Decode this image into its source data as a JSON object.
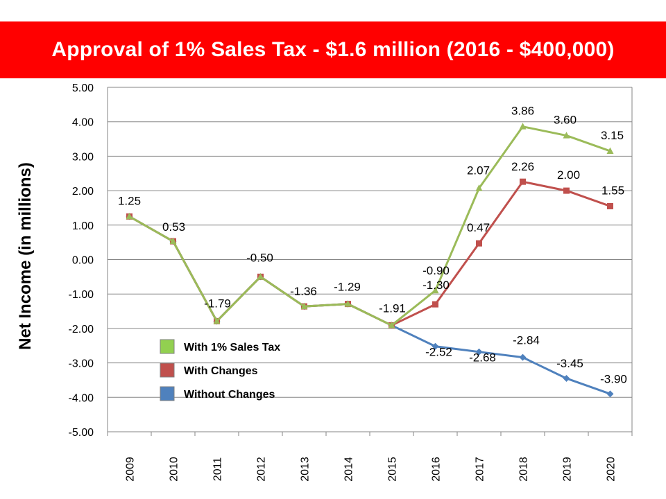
{
  "chart_data": {
    "type": "line",
    "title": "Approval of 1% Sales Tax - $1.6 million (2016 - $400,000)",
    "xlabel": "",
    "ylabel": "Net Income (in millions)",
    "categories": [
      "2009",
      "2010",
      "2011",
      "2012",
      "2013",
      "2014",
      "2015",
      "2016",
      "2017",
      "2018",
      "2019",
      "2020"
    ],
    "ylim": [
      -5,
      5
    ],
    "yticks": [
      "5.00",
      "4.00",
      "3.00",
      "2.00",
      "1.00",
      "0.00",
      "-1.00",
      "-2.00",
      "-3.00",
      "-4.00",
      "-5.00"
    ],
    "grid": true,
    "legend_position": "lower-left",
    "series": [
      {
        "name": "Without Changes",
        "color": "#4f81bd",
        "marker": "diamond",
        "values": [
          1.25,
          0.53,
          -1.79,
          -0.5,
          -1.36,
          -1.29,
          -1.91,
          -2.52,
          -2.68,
          -2.84,
          -3.45,
          -3.9
        ],
        "labels": [
          "",
          "",
          "",
          "",
          "",
          "",
          "",
          "-2.52",
          "-2.68",
          "-2.84",
          "-3.45",
          "-3.90"
        ]
      },
      {
        "name": "With Changes",
        "color": "#c0504d",
        "marker": "square",
        "values": [
          1.25,
          0.53,
          -1.79,
          -0.5,
          -1.36,
          -1.29,
          -1.91,
          -1.3,
          0.47,
          2.26,
          2.0,
          1.55
        ],
        "labels": [
          "1.25",
          "0.53",
          "-1.79",
          "-0.50",
          "-1.36",
          "-1.29",
          "-1.91",
          "-1.30",
          "0.47",
          "2.26",
          "2.00",
          "1.55"
        ]
      },
      {
        "name": "With 1% Sales Tax",
        "color": "#9bbb59",
        "marker": "triangle",
        "values": [
          1.25,
          0.53,
          -1.79,
          -0.5,
          -1.36,
          -1.29,
          -1.91,
          -0.9,
          2.07,
          3.86,
          3.6,
          3.15
        ],
        "labels": [
          "",
          "",
          "",
          "",
          "",
          "",
          "",
          "-0.90",
          "2.07",
          "3.86",
          "3.60",
          "3.15"
        ]
      }
    ],
    "legend": [
      {
        "name": "With 1% Sales Tax",
        "color": "#92d050"
      },
      {
        "name": "With Changes",
        "color": "#c0504d"
      },
      {
        "name": "Without Changes",
        "color": "#4f81bd"
      }
    ]
  }
}
